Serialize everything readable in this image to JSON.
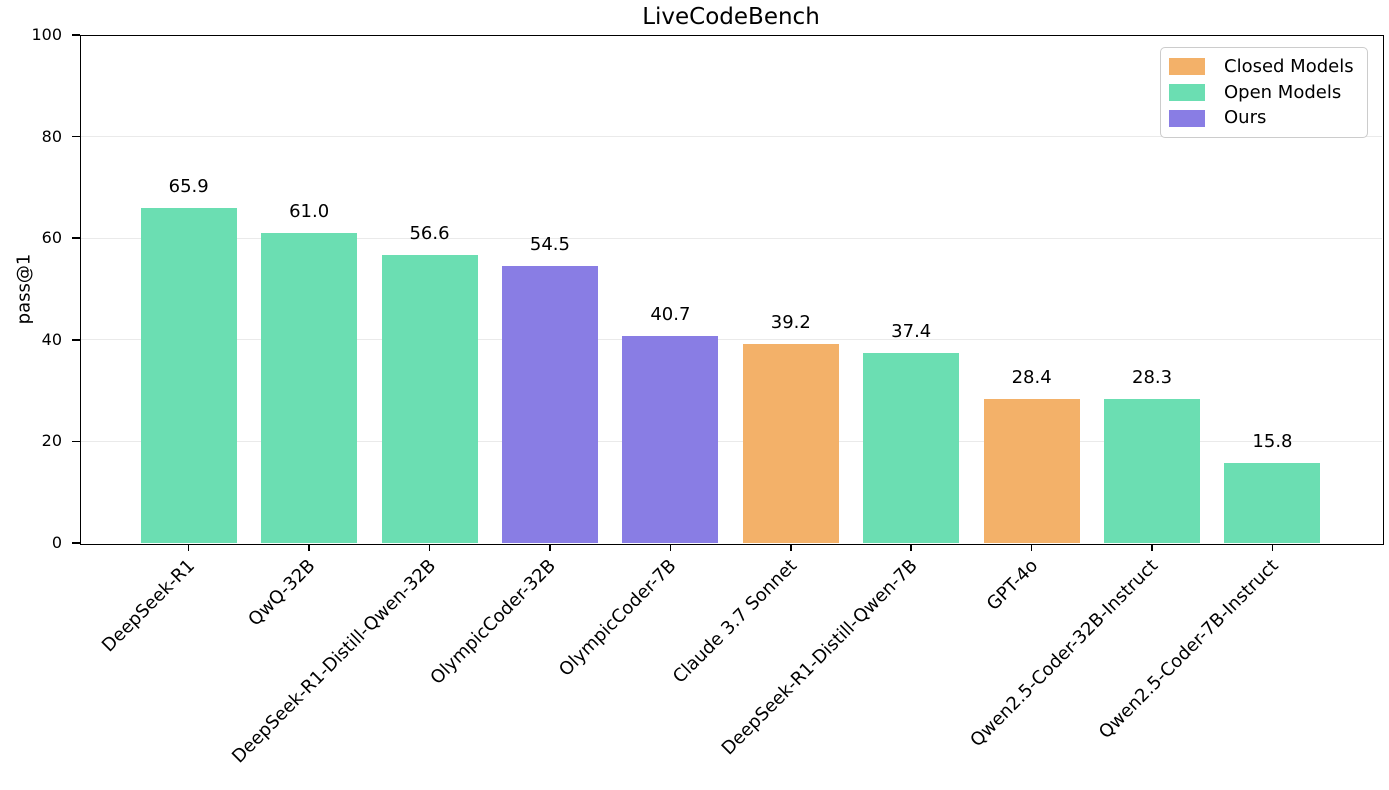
{
  "chart_data": {
    "type": "bar",
    "title": "LiveCodeBench",
    "xlabel": "",
    "ylabel": "pass@1",
    "ylim": [
      0,
      100
    ],
    "yticks": [
      0,
      20,
      40,
      60,
      80,
      100
    ],
    "grid": "horizontal-light",
    "legend_position": "upper right",
    "categories": [
      "DeepSeek-R1",
      "QwQ-32B",
      "DeepSeek-R1-Distill-Qwen-32B",
      "OlympicCoder-32B",
      "OlympicCoder-7B",
      "Claude 3.7 Sonnet",
      "DeepSeek-R1-Distill-Qwen-7B",
      "GPT-4o",
      "Qwen2.5-Coder-32B-Instruct",
      "Qwen2.5-Coder-7B-Instruct"
    ],
    "values": [
      65.9,
      61.0,
      56.6,
      54.5,
      40.7,
      39.2,
      37.4,
      28.4,
      28.3,
      15.8
    ],
    "value_labels": [
      "65.9",
      "61.0",
      "56.6",
      "54.5",
      "40.7",
      "39.2",
      "37.4",
      "28.4",
      "28.3",
      "15.8"
    ],
    "groups": [
      "open",
      "open",
      "open",
      "ours",
      "ours",
      "closed",
      "open",
      "closed",
      "open",
      "open"
    ]
  },
  "legend": {
    "items": [
      {
        "label": "Closed Models",
        "group": "closed"
      },
      {
        "label": "Open Models",
        "group": "open"
      },
      {
        "label": "Ours",
        "group": "ours"
      }
    ]
  },
  "colors": {
    "closed": "#F3B169",
    "open": "#6BDEB2",
    "ours": "#897DE4",
    "grid": "#EAEAEA",
    "axis": "#000000",
    "legend_border": "#CCCCCC",
    "background": "#FFFFFF",
    "text": "#000000"
  }
}
